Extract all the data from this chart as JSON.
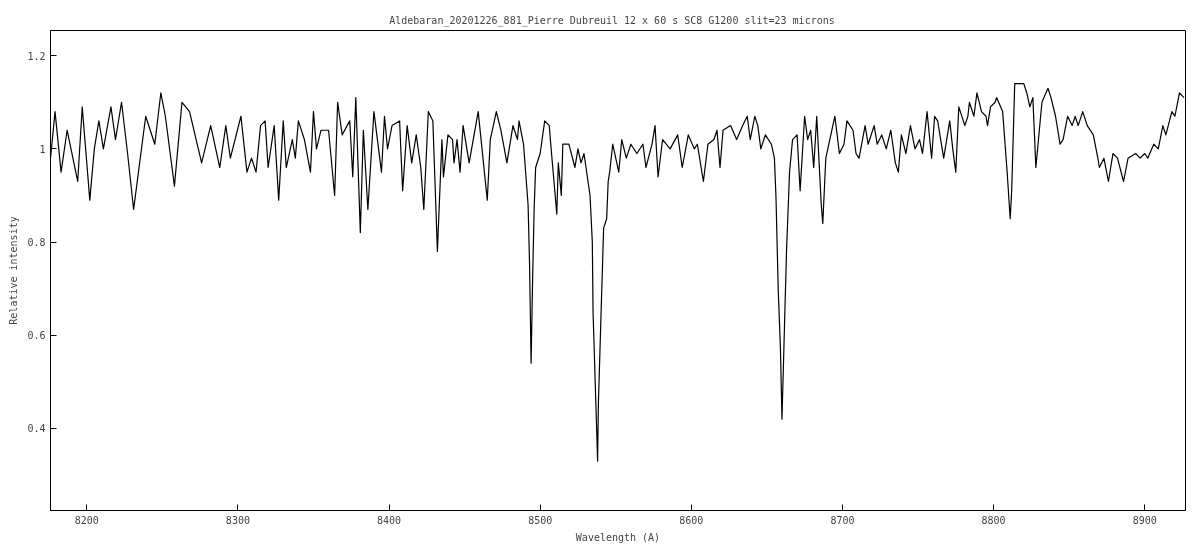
{
  "chart_data": {
    "type": "line",
    "title": "Aldebaran_20201226_881_Pierre Dubreuil  12 x 60 s  SC8 G1200 slit=23 microns",
    "xlabel": "Wavelength (A)",
    "ylabel": "Relative intensity",
    "xlim": [
      8176,
      8927
    ],
    "ylim": [
      0.224,
      1.254
    ],
    "xticks": [
      8200,
      8300,
      8400,
      8500,
      8600,
      8700,
      8800,
      8900
    ],
    "yticks": [
      0.4,
      0.6,
      0.8,
      1,
      1.2
    ],
    "grid": false,
    "marker": "none",
    "line_style": "solid",
    "series": [
      {
        "color": "#000000",
        "x": [
          8176,
          8179,
          8183,
          8187,
          8194,
          8197,
          8202,
          8205,
          8208,
          8211,
          8216,
          8219,
          8223,
          8227,
          8231,
          8239,
          8245,
          8249,
          8252,
          8258,
          8263,
          8268,
          8276,
          8282,
          8288,
          8292,
          8295,
          8302,
          8306,
          8309,
          8312,
          8315,
          8318,
          8320,
          8324,
          8327,
          8330,
          8332,
          8336,
          8338,
          8340,
          8344,
          8348,
          8350,
          8352,
          8355,
          8360,
          8364,
          8366,
          8369,
          8374,
          8376,
          8378,
          8381,
          8383,
          8386,
          8390,
          8395,
          8397,
          8399,
          8402,
          8407,
          8409,
          8412,
          8415,
          8418,
          8421,
          8423,
          8426,
          8429,
          8432,
          8435,
          8436,
          8439,
          8442,
          8443,
          8445,
          8447,
          8449,
          8453,
          8459,
          8465,
          8467,
          8471,
          8474,
          8478,
          8482,
          8485,
          8486,
          8489,
          8492,
          8493,
          8494,
          8495,
          8496,
          8497,
          8500,
          8503,
          8506,
          8507,
          8511,
          8512,
          8514,
          8515,
          8519,
          8523,
          8525,
          8527,
          8529,
          8533,
          8534.5,
          8535,
          8536.5,
          8538,
          8538.5,
          8540.5,
          8542,
          8544,
          8545,
          8546,
          8548,
          8552,
          8554,
          8557,
          8560,
          8564,
          8568,
          8570,
          8574,
          8576,
          8578,
          8581,
          8586,
          8591,
          8594,
          8598,
          8602,
          8604,
          8608,
          8611,
          8615,
          8617,
          8619,
          8621,
          8626,
          8630,
          8634,
          8637,
          8639,
          8642,
          8644,
          8646,
          8649,
          8653,
          8655,
          8656,
          8657.5,
          8659,
          8660,
          8661.5,
          8663,
          8665,
          8667,
          8670,
          8672,
          8675,
          8677,
          8679,
          8681,
          8683,
          8686,
          8687,
          8689,
          8691,
          8695,
          8698,
          8701,
          8703,
          8707,
          8709,
          8711,
          8715,
          8717,
          8721,
          8723,
          8726,
          8729,
          8732,
          8735,
          8737,
          8739,
          8742,
          8745,
          8748,
          8751,
          8753,
          8756,
          8759,
          8761,
          8763,
          8767,
          8771,
          8773,
          8775,
          8777,
          8781,
          8783,
          8784,
          8787,
          8789,
          8792,
          8795,
          8796,
          8798,
          8801,
          8802,
          8806,
          8809,
          8811,
          8812,
          8814,
          8818,
          8820,
          8822,
          8824,
          8826,
          8828,
          8832,
          8836,
          8838,
          8841,
          8844,
          8846,
          8849,
          8852,
          8854,
          8856,
          8859,
          8862,
          8866,
          8869,
          8870,
          8873,
          8876,
          8879,
          8882,
          8886,
          8889,
          8894,
          8897,
          8900,
          8902,
          8906,
          8909,
          8912,
          8914,
          8918,
          8920,
          8923,
          8926
        ],
        "values": [
          0.98,
          1.08,
          0.95,
          1.04,
          0.93,
          1.09,
          0.89,
          1.0,
          1.06,
          1.0,
          1.09,
          1.02,
          1.1,
          0.99,
          0.87,
          1.07,
          1.01,
          1.12,
          1.07,
          0.92,
          1.1,
          1.08,
          0.97,
          1.05,
          0.96,
          1.05,
          0.98,
          1.07,
          0.95,
          0.98,
          0.95,
          1.05,
          1.06,
          0.96,
          1.05,
          0.89,
          1.06,
          0.96,
          1.02,
          0.98,
          1.06,
          1.02,
          0.95,
          1.08,
          1.0,
          1.04,
          1.04,
          0.9,
          1.1,
          1.03,
          1.06,
          0.94,
          1.11,
          0.82,
          1.04,
          0.87,
          1.08,
          0.95,
          1.07,
          1.0,
          1.05,
          1.06,
          0.91,
          1.05,
          0.97,
          1.03,
          0.96,
          0.87,
          1.08,
          1.06,
          0.78,
          1.02,
          0.94,
          1.03,
          1.02,
          0.97,
          1.02,
          0.95,
          1.05,
          0.97,
          1.08,
          0.89,
          1.02,
          1.08,
          1.04,
          0.97,
          1.05,
          1.02,
          1.06,
          1.01,
          0.88,
          0.75,
          0.54,
          0.72,
          0.87,
          0.96,
          0.99,
          1.06,
          1.05,
          1.01,
          0.86,
          0.97,
          0.9,
          1.01,
          1.01,
          0.96,
          1.0,
          0.97,
          0.99,
          0.9,
          0.8,
          0.65,
          0.49,
          0.33,
          0.45,
          0.67,
          0.83,
          0.85,
          0.93,
          0.95,
          1.01,
          0.95,
          1.02,
          0.98,
          1.01,
          0.99,
          1.01,
          0.96,
          1.01,
          1.05,
          0.94,
          1.02,
          1.0,
          1.03,
          0.96,
          1.03,
          1.0,
          1.01,
          0.93,
          1.01,
          1.02,
          1.04,
          0.96,
          1.04,
          1.05,
          1.02,
          1.05,
          1.07,
          1.02,
          1.07,
          1.05,
          1.0,
          1.03,
          1.01,
          0.98,
          0.9,
          0.7,
          0.57,
          0.42,
          0.6,
          0.78,
          0.95,
          1.02,
          1.03,
          0.91,
          1.07,
          1.02,
          1.04,
          0.96,
          1.07,
          0.88,
          0.84,
          0.98,
          1.01,
          1.07,
          0.99,
          1.01,
          1.06,
          1.04,
          0.99,
          0.98,
          1.05,
          1.01,
          1.05,
          1.01,
          1.03,
          1.0,
          1.04,
          0.97,
          0.95,
          1.03,
          0.99,
          1.05,
          1.0,
          1.02,
          0.99,
          1.08,
          0.98,
          1.07,
          1.06,
          0.98,
          1.06,
          1.0,
          0.95,
          1.09,
          1.05,
          1.07,
          1.1,
          1.07,
          1.12,
          1.08,
          1.07,
          1.05,
          1.09,
          1.1,
          1.11,
          1.08,
          0.95,
          0.85,
          0.91,
          1.14,
          1.14,
          1.14,
          1.12,
          1.09,
          1.11,
          0.96,
          1.1,
          1.13,
          1.11,
          1.07,
          1.01,
          1.02,
          1.07,
          1.05,
          1.07,
          1.05,
          1.08,
          1.05,
          1.03,
          0.98,
          0.96,
          0.98,
          0.93,
          0.99,
          0.98,
          0.93,
          0.98,
          0.99,
          0.98,
          0.99,
          0.98,
          1.01,
          1.0,
          1.05,
          1.03,
          1.08,
          1.07,
          1.12,
          1.11
        ]
      }
    ]
  }
}
